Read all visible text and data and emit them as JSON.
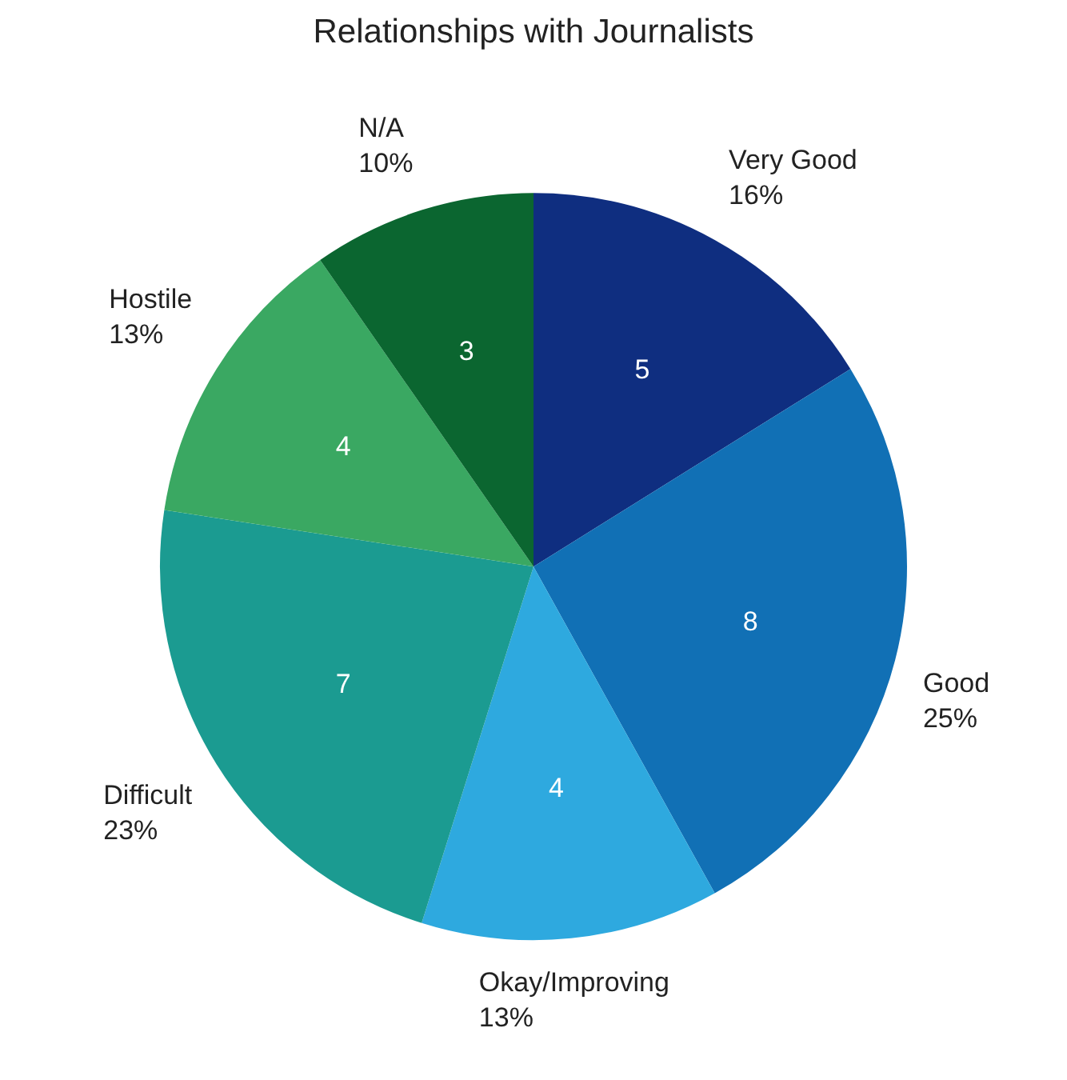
{
  "chart_data": {
    "type": "pie",
    "title": "Relationships with Journalists",
    "categories": [
      "Very Good",
      "Good",
      "Okay/Improving",
      "Difficult",
      "Hostile",
      "N/A"
    ],
    "values": [
      5,
      8,
      4,
      7,
      4,
      3
    ],
    "colors": [
      "#0f2e80",
      "#1170b5",
      "#2ea9df",
      "#1b9b91",
      "#3aa862",
      "#0b6630"
    ],
    "data_labels": true,
    "annotations": [
      {
        "text": "16%",
        "x": "Very Good"
      },
      {
        "text": "25%",
        "x": "Good"
      },
      {
        "text": "13%",
        "x": "Okay/Improving"
      },
      {
        "text": "23%",
        "x": "Difficult"
      },
      {
        "text": "13%",
        "x": "Hostile"
      },
      {
        "text": "10%",
        "x": "N/A"
      }
    ],
    "legend": false
  }
}
